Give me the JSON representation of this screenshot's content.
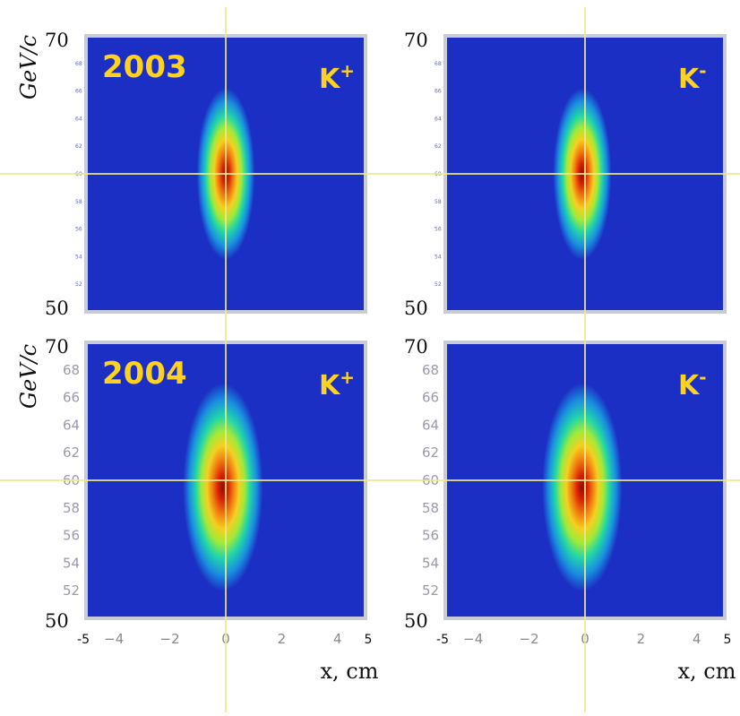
{
  "chart_data": [
    {
      "type": "heatmap",
      "year_label": "2003",
      "particle": "K+",
      "particle_base": "K",
      "particle_sign": "+",
      "x_range": [
        -5,
        5
      ],
      "y_range": [
        50,
        70
      ],
      "ylabel": "GeV/c",
      "y_tick_labels": [
        "70",
        "50"
      ],
      "peak": {
        "x": 0.0,
        "y": 60.0,
        "sigma_x": 0.4,
        "sigma_y": 2.4
      },
      "crosshair": {
        "x": 0.0,
        "y": 60.0
      },
      "colorscale": [
        "#1b2fc4",
        "#1a8fe0",
        "#22d6a8",
        "#a0ea3a",
        "#f5d020",
        "#f07a10",
        "#d81e06",
        "#8a0f05"
      ]
    },
    {
      "type": "heatmap",
      "year_label": "",
      "particle": "K-",
      "particle_base": "K",
      "particle_sign": "-",
      "x_range": [
        -5,
        5
      ],
      "y_range": [
        50,
        70
      ],
      "y_tick_labels": [
        "70",
        "50"
      ],
      "peak": {
        "x": -0.1,
        "y": 60.0,
        "sigma_x": 0.4,
        "sigma_y": 2.4
      },
      "crosshair": {
        "x": 0.0,
        "y": 60.0
      },
      "colorscale": [
        "#1b2fc4",
        "#1a8fe0",
        "#22d6a8",
        "#a0ea3a",
        "#f5d020",
        "#f07a10",
        "#d81e06",
        "#8a0f05"
      ]
    },
    {
      "type": "heatmap",
      "year_label": "2004",
      "particle": "K+",
      "particle_base": "K",
      "particle_sign": "+",
      "x_range": [
        -5,
        5
      ],
      "y_range": [
        50,
        70
      ],
      "ylabel": "GeV/c",
      "y_tick_labels": [
        "70",
        "68",
        "66",
        "64",
        "62",
        "60",
        "58",
        "56",
        "54",
        "52",
        "50"
      ],
      "x_tick_labels": [
        "-5",
        "-4",
        "-2",
        "0",
        "2",
        "4",
        "5"
      ],
      "xlabel": "x, cm",
      "peak": {
        "x": -0.1,
        "y": 59.5,
        "sigma_x": 0.55,
        "sigma_y": 2.9
      },
      "crosshair": {
        "x": 0.0,
        "y": 60.0
      },
      "colorscale": [
        "#1b2fc4",
        "#1a8fe0",
        "#22d6a8",
        "#a0ea3a",
        "#f5d020",
        "#f07a10",
        "#d81e06",
        "#8a0f05"
      ]
    },
    {
      "type": "heatmap",
      "year_label": "",
      "particle": "K-",
      "particle_base": "K",
      "particle_sign": "-",
      "x_range": [
        -5,
        5
      ],
      "y_range": [
        50,
        70
      ],
      "y_tick_labels": [
        "70",
        "68",
        "66",
        "64",
        "62",
        "60",
        "58",
        "56",
        "54",
        "52",
        "50"
      ],
      "x_tick_labels": [
        "-5",
        "-4",
        "-2",
        "0",
        "2",
        "4",
        "5"
      ],
      "xlabel": "x, cm",
      "peak": {
        "x": -0.1,
        "y": 59.5,
        "sigma_x": 0.55,
        "sigma_y": 2.9
      },
      "crosshair": {
        "x": 0.0,
        "y": 60.0
      },
      "colorscale": [
        "#1b2fc4",
        "#1a8fe0",
        "#22d6a8",
        "#a0ea3a",
        "#f5d020",
        "#f07a10",
        "#d81e06",
        "#8a0f05"
      ]
    }
  ]
}
